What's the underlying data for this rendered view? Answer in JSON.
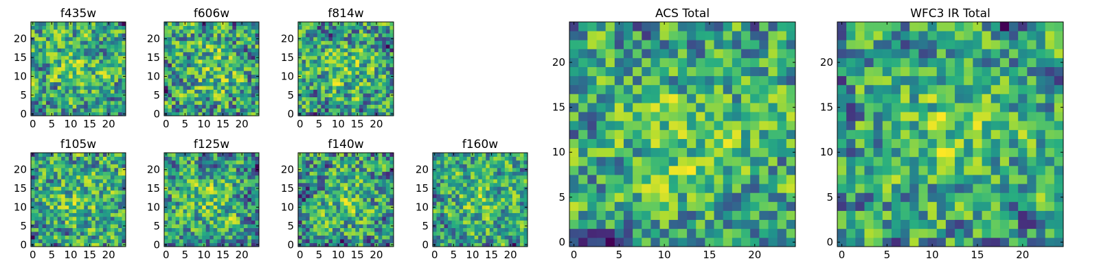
{
  "chart_data": [
    {
      "type": "heatmap",
      "title": "f435w",
      "colormap": "viridis",
      "grid": false,
      "xlim": [
        0,
        24
      ],
      "ylim": [
        0,
        24
      ],
      "xticks": [
        0,
        5,
        10,
        15,
        20
      ],
      "yticks": [
        0,
        5,
        10,
        15,
        20
      ],
      "seed": 11,
      "tick_labels": {
        "x": [
          "0",
          "5",
          "10",
          "15",
          "20"
        ],
        "y": [
          "0",
          "5",
          "10",
          "15",
          "20"
        ]
      }
    },
    {
      "type": "heatmap",
      "title": "f606w",
      "colormap": "viridis",
      "grid": false,
      "xlim": [
        0,
        24
      ],
      "ylim": [
        0,
        24
      ],
      "xticks": [
        0,
        5,
        10,
        15,
        20
      ],
      "yticks": [
        0,
        5,
        10,
        15,
        20
      ],
      "seed": 23,
      "tick_labels": {
        "x": [
          "0",
          "5",
          "10",
          "15",
          "20"
        ],
        "y": [
          "0",
          "5",
          "10",
          "15",
          "20"
        ]
      }
    },
    {
      "type": "heatmap",
      "title": "f814w",
      "colormap": "viridis",
      "grid": false,
      "xlim": [
        0,
        24
      ],
      "ylim": [
        0,
        24
      ],
      "xticks": [
        0,
        5,
        10,
        15,
        20
      ],
      "yticks": [
        0,
        5,
        10,
        15,
        20
      ],
      "seed": 37,
      "tick_labels": {
        "x": [
          "0",
          "5",
          "10",
          "15",
          "20"
        ],
        "y": [
          "0",
          "5",
          "10",
          "15",
          "20"
        ]
      }
    },
    {
      "type": "heatmap",
      "title": "f105w",
      "colormap": "viridis",
      "grid": false,
      "xlim": [
        0,
        24
      ],
      "ylim": [
        0,
        24
      ],
      "xticks": [
        0,
        5,
        10,
        15,
        20
      ],
      "yticks": [
        0,
        5,
        10,
        15,
        20
      ],
      "seed": 41,
      "tick_labels": {
        "x": [
          "0",
          "5",
          "10",
          "15",
          "20"
        ],
        "y": [
          "0",
          "5",
          "10",
          "15",
          "20"
        ]
      }
    },
    {
      "type": "heatmap",
      "title": "f125w",
      "colormap": "viridis",
      "grid": false,
      "xlim": [
        0,
        24
      ],
      "ylim": [
        0,
        24
      ],
      "xticks": [
        0,
        5,
        10,
        15,
        20
      ],
      "yticks": [
        0,
        5,
        10,
        15,
        20
      ],
      "seed": 53,
      "tick_labels": {
        "x": [
          "0",
          "5",
          "10",
          "15",
          "20"
        ],
        "y": [
          "0",
          "5",
          "10",
          "15",
          "20"
        ]
      }
    },
    {
      "type": "heatmap",
      "title": "f140w",
      "colormap": "viridis",
      "grid": false,
      "xlim": [
        0,
        24
      ],
      "ylim": [
        0,
        24
      ],
      "xticks": [
        0,
        5,
        10,
        15,
        20
      ],
      "yticks": [
        0,
        5,
        10,
        15,
        20
      ],
      "seed": 67,
      "tick_labels": {
        "x": [
          "0",
          "5",
          "10",
          "15",
          "20"
        ],
        "y": [
          "0",
          "5",
          "10",
          "15",
          "20"
        ]
      }
    },
    {
      "type": "heatmap",
      "title": "f160w",
      "colormap": "viridis",
      "grid": false,
      "xlim": [
        0,
        24
      ],
      "ylim": [
        0,
        24
      ],
      "xticks": [
        0,
        5,
        10,
        15,
        20
      ],
      "yticks": [
        0,
        5,
        10,
        15,
        20
      ],
      "seed": 79,
      "tick_labels": {
        "x": [
          "0",
          "5",
          "10",
          "15",
          "20"
        ],
        "y": [
          "0",
          "5",
          "10",
          "15",
          "20"
        ]
      }
    },
    {
      "type": "heatmap",
      "title": "ACS Total",
      "colormap": "viridis",
      "grid": false,
      "xlim": [
        0,
        24
      ],
      "ylim": [
        0,
        24
      ],
      "xticks": [
        0,
        5,
        10,
        15,
        20
      ],
      "yticks": [
        0,
        5,
        10,
        15,
        20
      ],
      "seed": 97,
      "tick_labels": {
        "x": [
          "0",
          "5",
          "10",
          "15",
          "20"
        ],
        "y": [
          "0",
          "5",
          "10",
          "15",
          "20"
        ]
      }
    },
    {
      "type": "heatmap",
      "title": "WFC3 IR Total",
      "colormap": "viridis",
      "grid": false,
      "xlim": [
        0,
        24
      ],
      "ylim": [
        0,
        24
      ],
      "xticks": [
        0,
        5,
        10,
        15,
        20
      ],
      "yticks": [
        0,
        5,
        10,
        15,
        20
      ],
      "seed": 113,
      "tick_labels": {
        "x": [
          "0",
          "5",
          "10",
          "15",
          "20"
        ],
        "y": [
          "0",
          "5",
          "10",
          "15",
          "20"
        ]
      }
    }
  ],
  "colors": {
    "viridis": [
      "#440154",
      "#472d7b",
      "#3b528b",
      "#2c728e",
      "#21918c",
      "#28ae80",
      "#5ec962",
      "#addc30",
      "#fde725"
    ]
  }
}
